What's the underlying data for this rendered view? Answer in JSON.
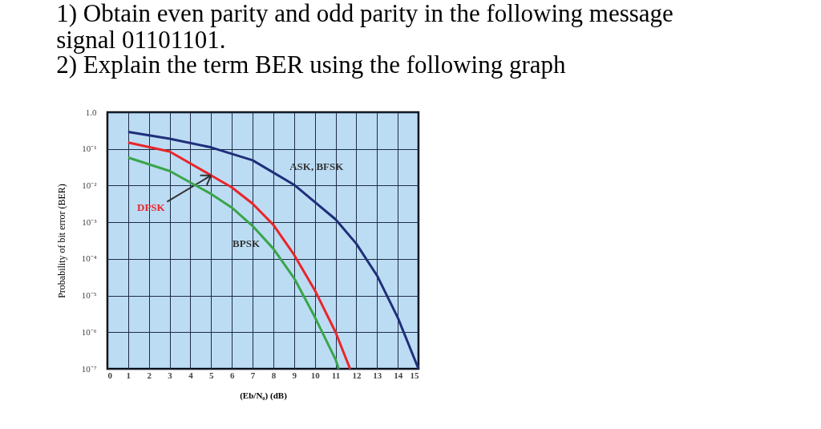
{
  "chart_data": {
    "type": "line",
    "title": "1) Obtain even parity and odd parity in the following message\nsignal  01101101.",
    "subtitle": "2) Explain the term BER using the following graph",
    "xlabel": "(Eb/N₀) (dB)",
    "ylabel": "Probability of bit error (BER)",
    "series": [
      {
        "name": "ASK, BFSK",
        "color": "#1f2f7a",
        "x": [
          1,
          3,
          5,
          7,
          9,
          11,
          12,
          13,
          14,
          15
        ],
        "values": [
          0.29,
          0.19,
          0.11,
          0.049,
          0.0105,
          0.0012,
          0.00026,
          3.5e-05,
          2.5e-06,
          1e-07
        ]
      },
      {
        "name": "DPSK",
        "color": "#e8262a",
        "x": [
          1,
          3,
          5,
          6,
          7,
          8,
          9,
          10,
          11,
          11.7
        ],
        "values": [
          0.15,
          0.085,
          0.019,
          0.0089,
          0.0032,
          0.00085,
          0.00013,
          1.4e-05,
          1e-06,
          1e-07
        ]
      },
      {
        "name": "BPSK",
        "color": "#3aa54a",
        "x": [
          1,
          3,
          5,
          6,
          7,
          8,
          9,
          10,
          11,
          11.15
        ],
        "values": [
          0.058,
          0.025,
          0.0059,
          0.0025,
          0.00079,
          0.00019,
          3e-05,
          2.6e-06,
          1.8e-07,
          1e-07
        ]
      }
    ],
    "xlim": [
      0,
      15
    ],
    "xticks": [
      0,
      1,
      2,
      3,
      4,
      5,
      6,
      7,
      8,
      9,
      10,
      11,
      12,
      13,
      14,
      15
    ],
    "ylim": [
      1e-07,
      1
    ],
    "log": true,
    "yticks": [
      {
        "value": 1,
        "label": "1.0"
      },
      {
        "value": 0.1,
        "label": "10⁻¹"
      },
      {
        "value": 0.01,
        "label": "10⁻²"
      },
      {
        "value": 0.001,
        "label": "10⁻³"
      },
      {
        "value": 0.0001,
        "label": "10⁻⁴"
      },
      {
        "value": 1e-05,
        "label": "10⁻⁵"
      },
      {
        "value": 1e-06,
        "label": "10⁻⁶"
      },
      {
        "value": 1e-07,
        "label": "10⁻⁷"
      }
    ],
    "grid": true,
    "line_style": "solid",
    "marker": "none"
  }
}
